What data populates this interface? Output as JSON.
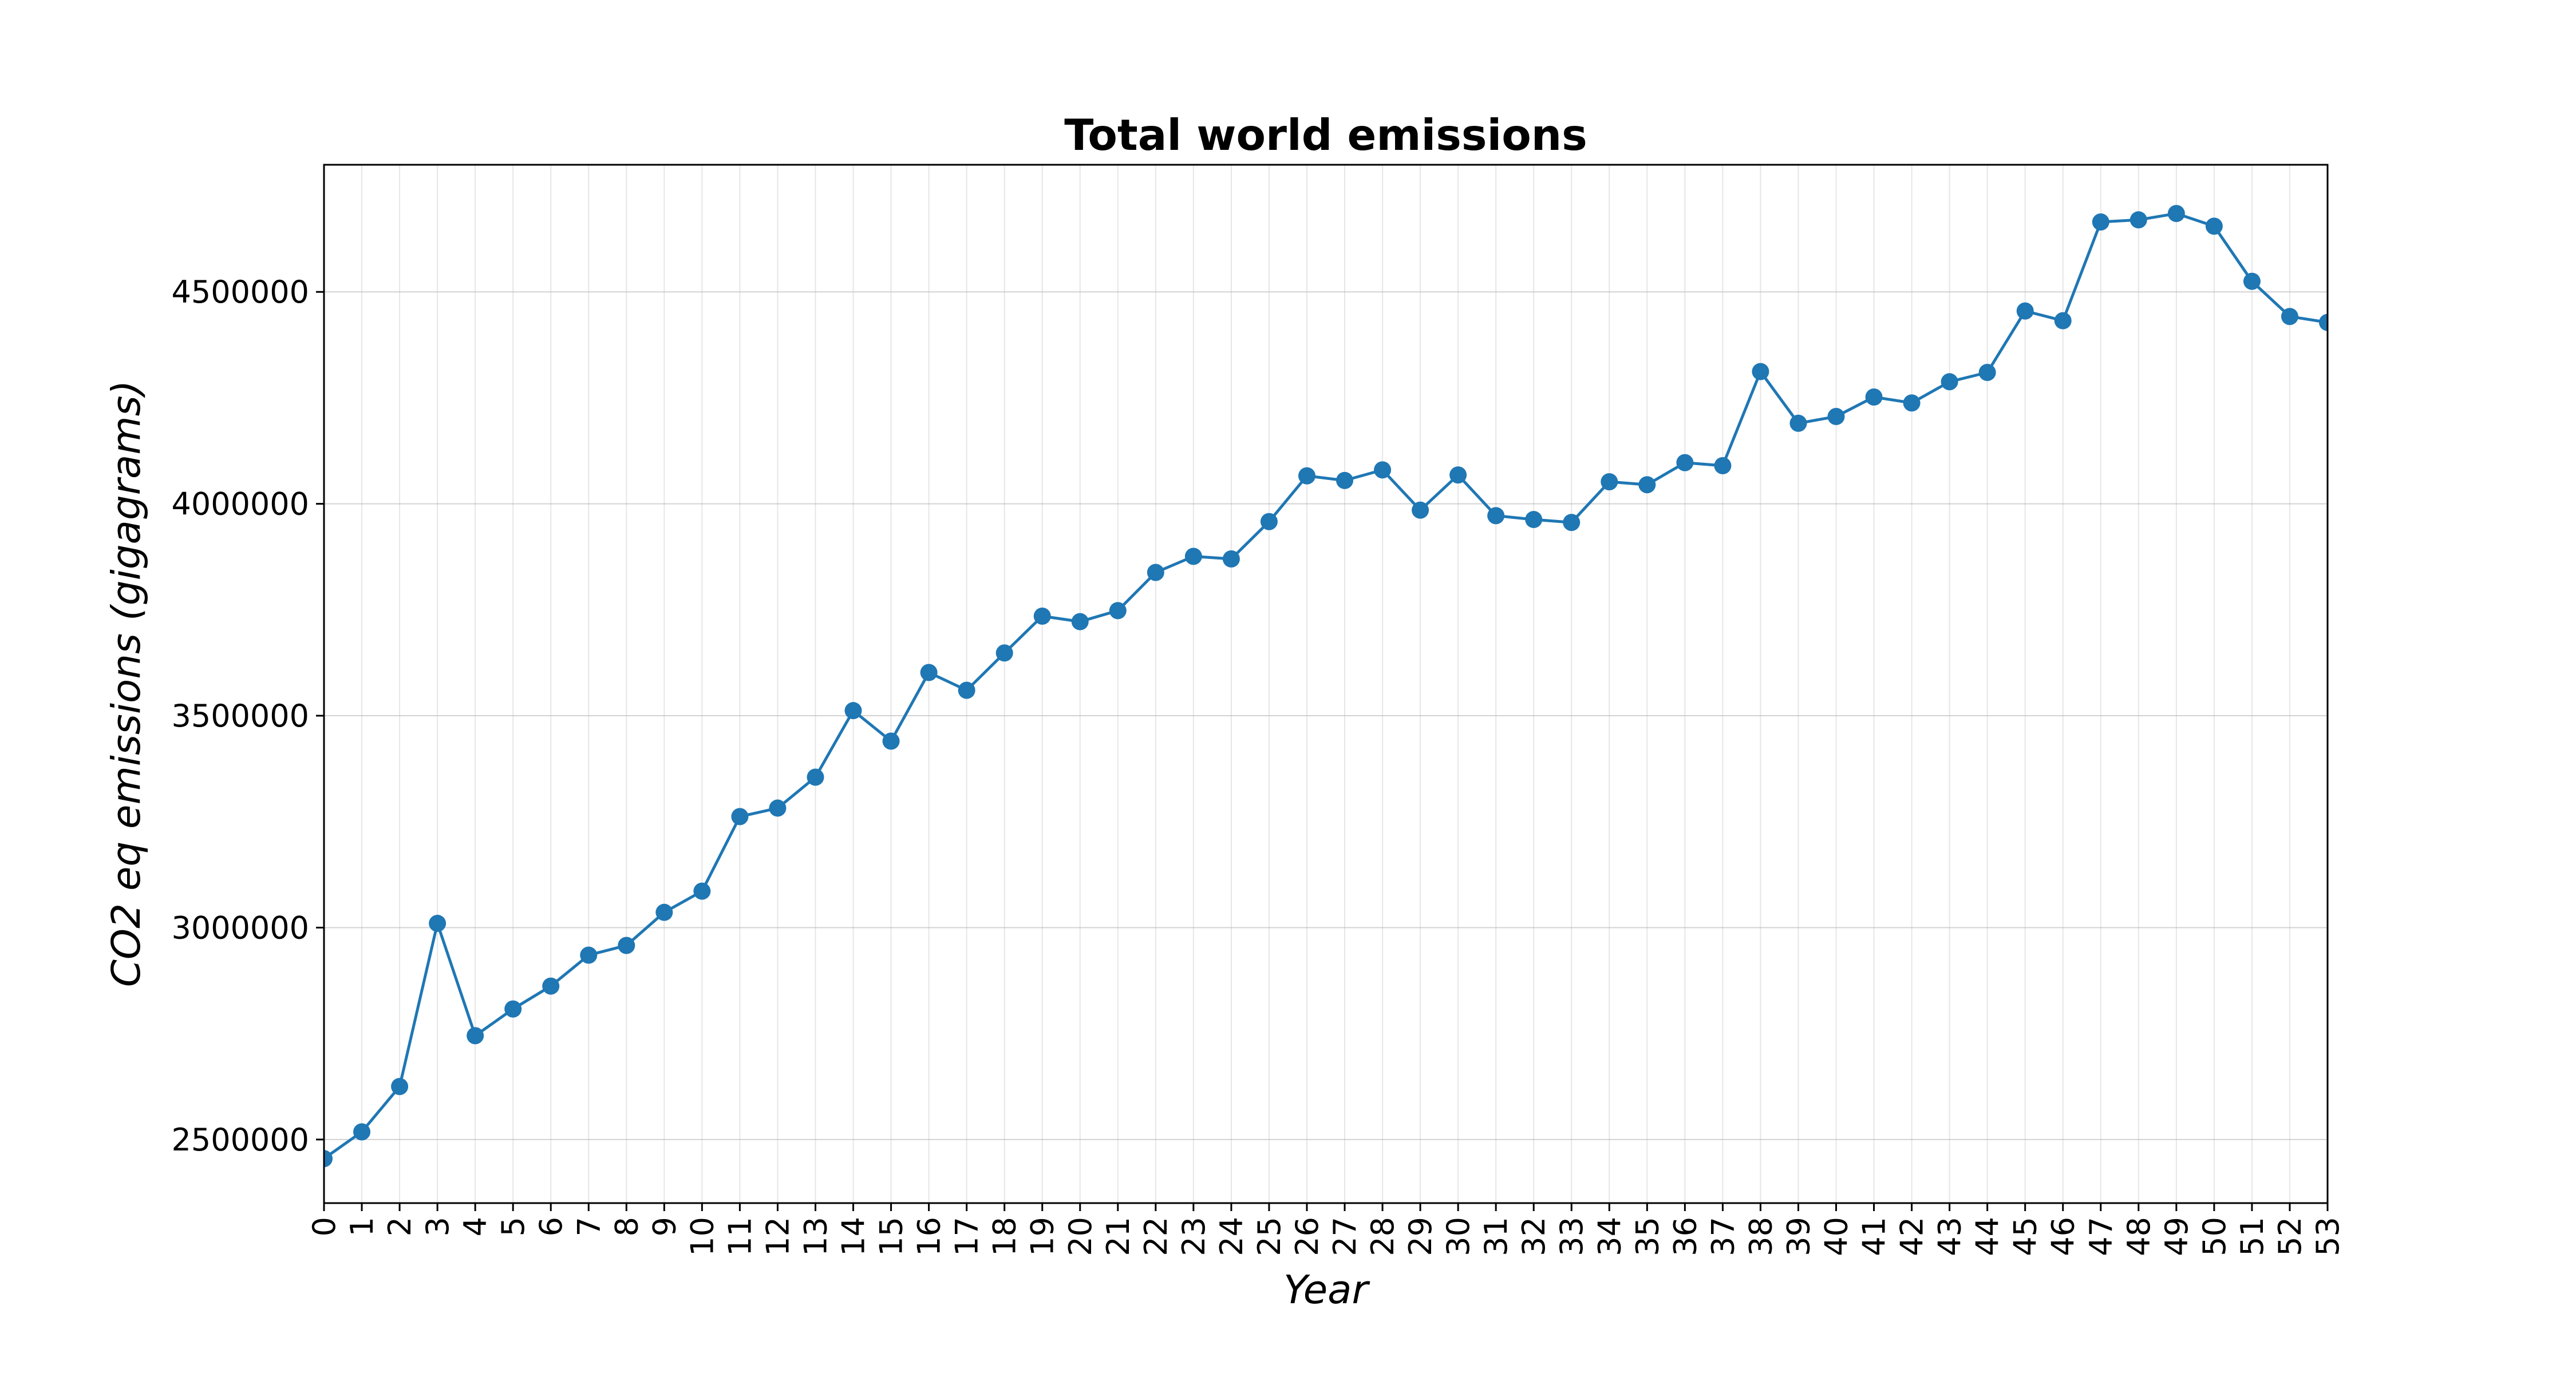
{
  "chart_data": {
    "type": "line",
    "title": "Total world emissions",
    "xlabel": "Year",
    "ylabel": "CO2 eq emissions (gigagrams)",
    "xlim": [
      0,
      53
    ],
    "ylim": [
      2350000,
      4800000
    ],
    "yticks": [
      2500000,
      3000000,
      3500000,
      4000000,
      4500000
    ],
    "grid": true,
    "color": "#1f77b4",
    "x": [
      0,
      1,
      2,
      3,
      4,
      5,
      6,
      7,
      8,
      9,
      10,
      11,
      12,
      13,
      14,
      15,
      16,
      17,
      18,
      19,
      20,
      21,
      22,
      23,
      24,
      25,
      26,
      27,
      28,
      29,
      30,
      31,
      32,
      33,
      34,
      35,
      36,
      37,
      38,
      39,
      40,
      41,
      42,
      43,
      44,
      45,
      46,
      47,
      48,
      49,
      50,
      51,
      52,
      53
    ],
    "values": [
      2455000,
      2518000,
      2625000,
      3010000,
      2745000,
      2808000,
      2862000,
      2935000,
      2958000,
      3036000,
      3086000,
      3262000,
      3282000,
      3355000,
      3512000,
      3440000,
      3602000,
      3560000,
      3648000,
      3735000,
      3722000,
      3748000,
      3838000,
      3876000,
      3870000,
      3958000,
      4066000,
      4055000,
      4080000,
      3985000,
      4068000,
      3972000,
      3963000,
      3956000,
      4052000,
      4045000,
      4097000,
      4090000,
      4312000,
      4190000,
      4206000,
      4252000,
      4238000,
      4288000,
      4310000,
      4455000,
      4432000,
      4665000,
      4670000,
      4685000,
      4655000,
      4525000,
      4442000,
      4428000
    ]
  }
}
